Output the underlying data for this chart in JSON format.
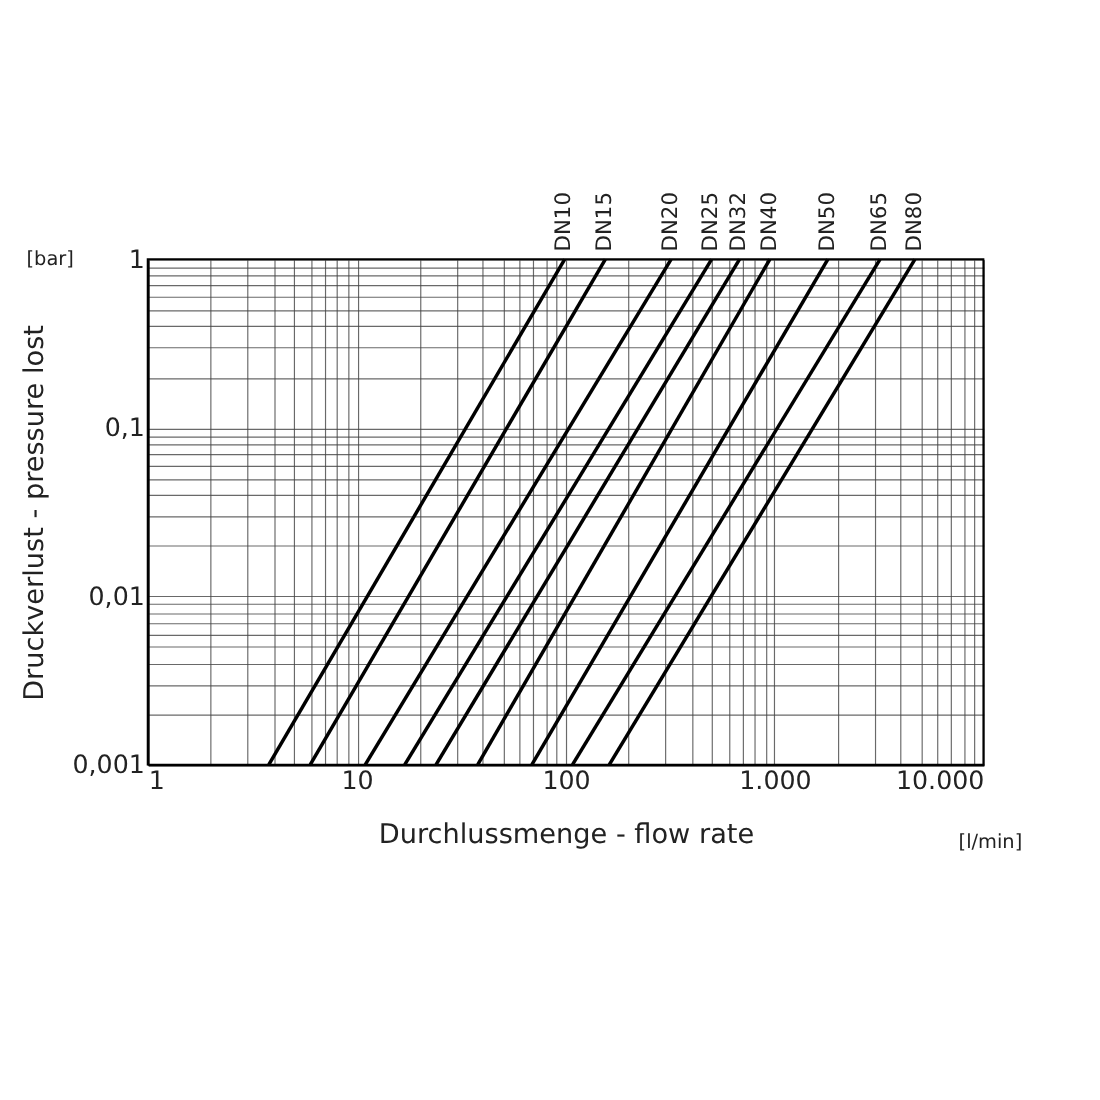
{
  "chart_data": {
    "type": "line",
    "xlabel": "Durchlussmenge - flow rate",
    "ylabel": "Druckverlust - pressure lost",
    "annotations": [
      "[bar]",
      "[l/min]"
    ],
    "log": "xy",
    "grid": true,
    "marker": "none",
    "line_style": "solid",
    "xlim": [
      1,
      10000
    ],
    "ylim": [
      0.001,
      1
    ],
    "xticks": [
      1,
      {
        "value": 2,
        "label": null
      },
      {
        "value": 3,
        "label": null
      },
      {
        "value": 4,
        "label": null
      },
      {
        "value": 5,
        "label": null
      },
      {
        "value": 6,
        "label": null
      },
      {
        "value": 7,
        "label": null
      },
      {
        "value": 8,
        "label": null
      },
      {
        "value": 9,
        "label": null
      },
      10,
      {
        "value": 20,
        "label": null
      },
      {
        "value": 30,
        "label": null
      },
      {
        "value": 40,
        "label": null
      },
      {
        "value": 50,
        "label": null
      },
      {
        "value": 60,
        "label": null
      },
      {
        "value": 70,
        "label": null
      },
      {
        "value": 80,
        "label": null
      },
      {
        "value": 90,
        "label": null
      },
      100,
      {
        "value": 200,
        "label": null
      },
      {
        "value": 300,
        "label": null
      },
      {
        "value": 400,
        "label": null
      },
      {
        "value": 500,
        "label": null
      },
      {
        "value": 600,
        "label": null
      },
      {
        "value": 700,
        "label": null
      },
      {
        "value": 800,
        "label": null
      },
      {
        "value": 900,
        "label": null
      },
      {
        "value": 1000,
        "label": "1.000"
      },
      {
        "value": 2000,
        "label": null
      },
      {
        "value": 3000,
        "label": null
      },
      {
        "value": 4000,
        "label": null
      },
      {
        "value": 5000,
        "label": null
      },
      {
        "value": 6000,
        "label": null
      },
      {
        "value": 7000,
        "label": null
      },
      {
        "value": 8000,
        "label": null
      },
      {
        "value": 9000,
        "label": null
      },
      {
        "value": 10000,
        "label": "10.000"
      }
    ],
    "yticks": [
      {
        "value": 0.001,
        "label": "0,001"
      },
      {
        "value": 0.002,
        "label": null
      },
      {
        "value": 0.003,
        "label": null
      },
      {
        "value": 0.004,
        "label": null
      },
      {
        "value": 0.005,
        "label": null
      },
      {
        "value": 0.006,
        "label": null
      },
      {
        "value": 0.007,
        "label": null
      },
      {
        "value": 0.008,
        "label": null
      },
      {
        "value": 0.009,
        "label": null
      },
      {
        "value": 0.01,
        "label": "0,01"
      },
      {
        "value": 0.02,
        "label": null
      },
      {
        "value": 0.03,
        "label": null
      },
      {
        "value": 0.04,
        "label": null
      },
      {
        "value": 0.05,
        "label": null
      },
      {
        "value": 0.06,
        "label": null
      },
      {
        "value": 0.07,
        "label": null
      },
      {
        "value": 0.08,
        "label": null
      },
      {
        "value": 0.09,
        "label": null
      },
      {
        "value": 0.1,
        "label": "0,1"
      },
      {
        "value": 0.2,
        "label": null
      },
      {
        "value": 0.3,
        "label": null
      },
      {
        "value": 0.4,
        "label": null
      },
      {
        "value": 0.5,
        "label": null
      },
      {
        "value": 0.6,
        "label": null
      },
      {
        "value": 0.7,
        "label": null
      },
      {
        "value": 0.8,
        "label": null
      },
      {
        "value": 0.9,
        "label": null
      },
      1
    ],
    "series": [
      {
        "name": "DN10",
        "color": "#000000",
        "x": [
          3.8,
          99
        ],
        "values": [
          0.001,
          1
        ]
      },
      {
        "name": "DN15",
        "color": "#000000",
        "x": [
          6.0,
          155
        ],
        "values": [
          0.001,
          1
        ]
      },
      {
        "name": "DN20",
        "color": "#000000",
        "x": [
          11,
          320
        ],
        "values": [
          0.001,
          1
        ]
      },
      {
        "name": "DN25",
        "color": "#000000",
        "x": [
          17,
          500
        ],
        "values": [
          0.001,
          1
        ]
      },
      {
        "name": "DN32",
        "color": "#000000",
        "x": [
          24,
          680
        ],
        "values": [
          0.001,
          1
        ]
      },
      {
        "name": "DN40",
        "color": "#000000",
        "x": [
          38,
          950
        ],
        "values": [
          0.001,
          1
        ]
      },
      {
        "name": "DN50",
        "color": "#000000",
        "x": [
          69,
          1800
        ],
        "values": [
          0.001,
          1
        ]
      },
      {
        "name": "DN65",
        "color": "#000000",
        "x": [
          108,
          3200
        ],
        "values": [
          0.001,
          1
        ]
      },
      {
        "name": "DN80",
        "color": "#000000",
        "x": [
          162,
          4700
        ],
        "values": [
          0.001,
          1
        ]
      }
    ]
  }
}
